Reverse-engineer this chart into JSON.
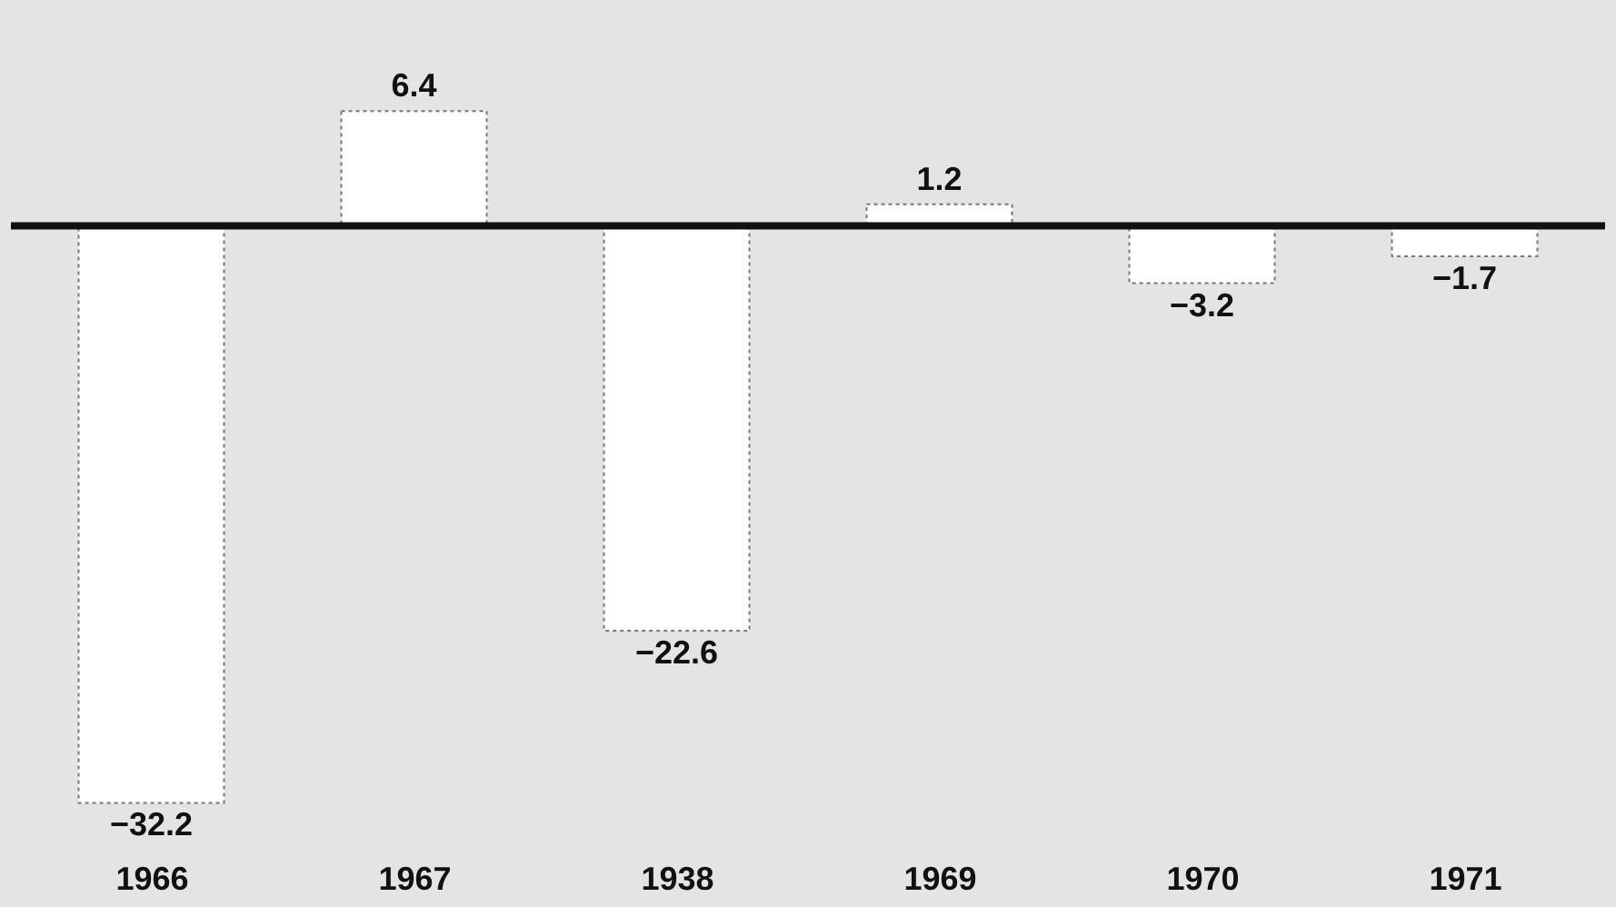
{
  "chart_data": {
    "type": "bar",
    "categories": [
      "1966",
      "1967",
      "1938",
      "1969",
      "1970",
      "1971"
    ],
    "values": [
      -32.2,
      6.4,
      -22.6,
      1.2,
      -3.2,
      -1.7
    ],
    "color": "#ffffff",
    "data_labels": true,
    "grid": false
  }
}
